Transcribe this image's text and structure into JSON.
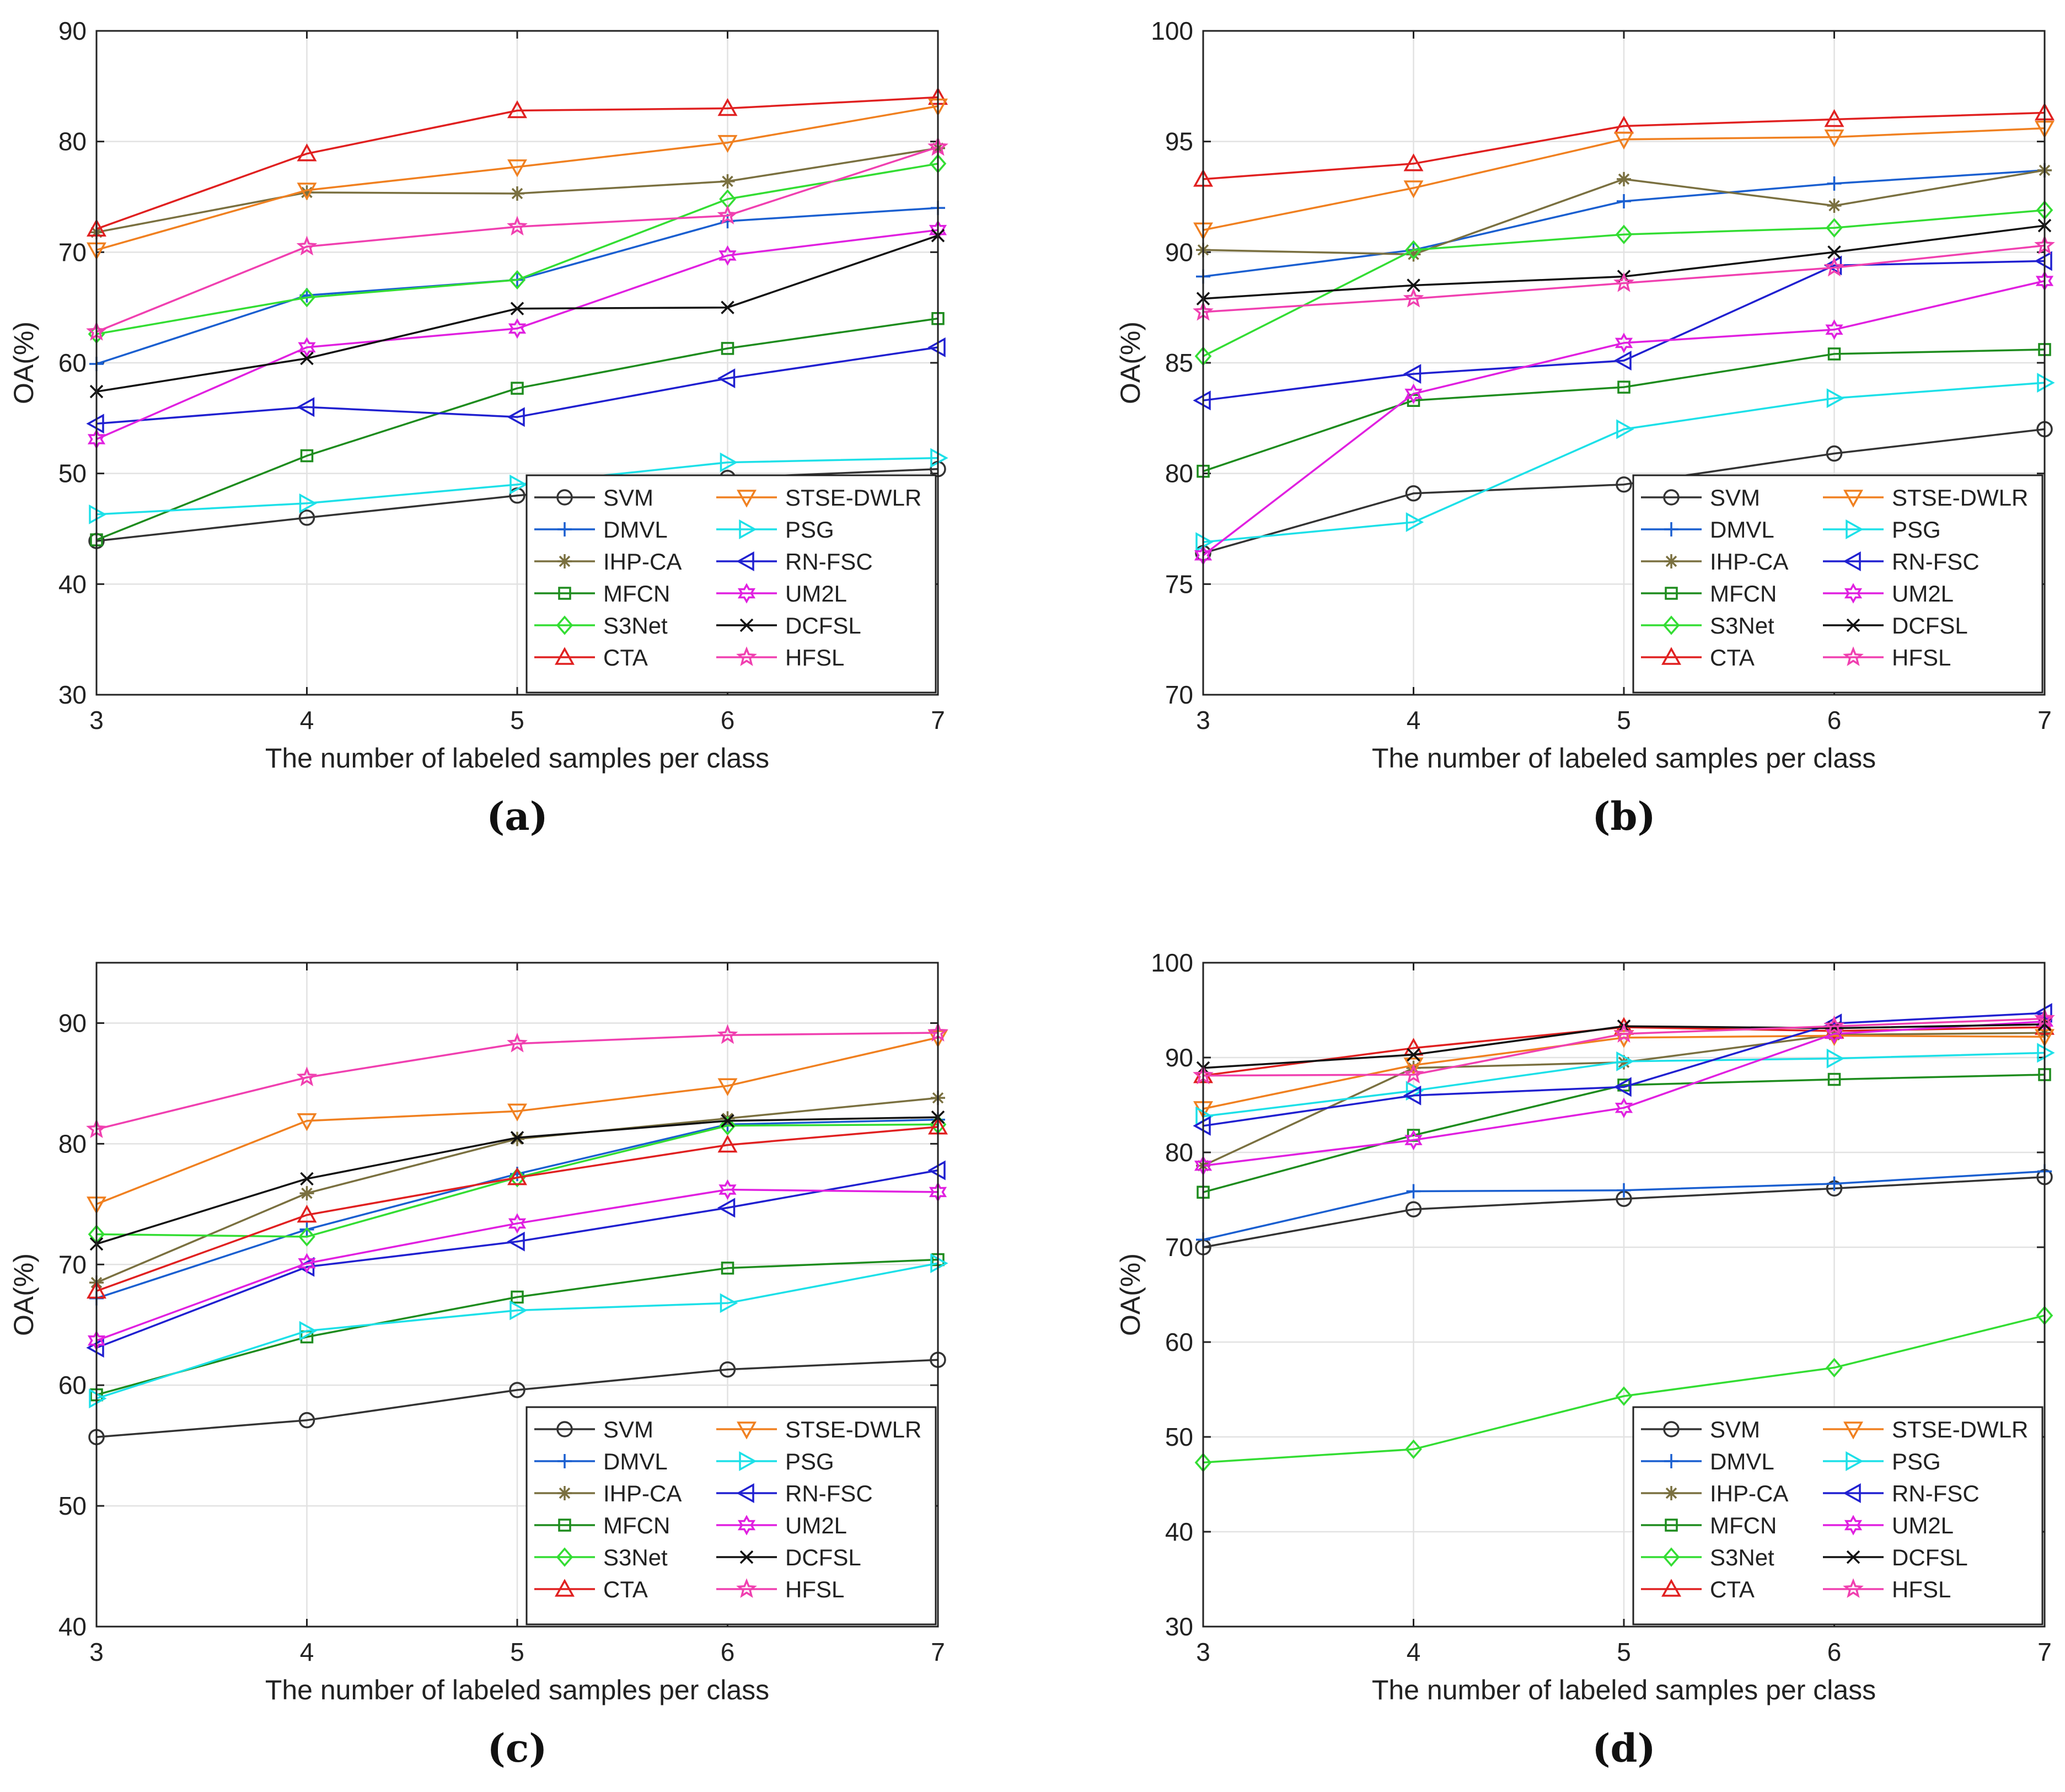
{
  "chart_data": [
    {
      "type": "line",
      "caption": "(a)",
      "xlabel": "The number of labeled samples per class",
      "ylabel": "OA(%)",
      "x": [
        3,
        4,
        5,
        6,
        7
      ],
      "xlim": [
        3,
        7
      ],
      "ylim": [
        30,
        90
      ],
      "xticks": [
        "3",
        "4",
        "5",
        "6",
        "7"
      ],
      "yticks": [
        "30",
        "40",
        "50",
        "60",
        "70",
        "80",
        "90"
      ],
      "grid": true,
      "legend": "bottom-right",
      "series": [
        {
          "name": "SVM",
          "values": [
            43.9,
            46.0,
            48.0,
            49.6,
            50.4
          ],
          "color": "#333333",
          "marker": "circle"
        },
        {
          "name": "DMVL",
          "values": [
            59.9,
            66.1,
            67.5,
            72.8,
            74.0
          ],
          "color": "#1a5fd0",
          "marker": "plus"
        },
        {
          "name": "IHP-CA",
          "values": [
            71.8,
            75.4,
            75.3,
            76.4,
            79.4
          ],
          "color": "#7a7040",
          "marker": "asterisk"
        },
        {
          "name": "MFCN",
          "values": [
            44.0,
            51.6,
            57.7,
            61.3,
            64.0
          ],
          "color": "#1e8c1e",
          "marker": "square"
        },
        {
          "name": "S3Net",
          "values": [
            62.6,
            65.9,
            67.5,
            74.8,
            78.0
          ],
          "color": "#33dd33",
          "marker": "diamond"
        },
        {
          "name": "CTA",
          "values": [
            72.1,
            78.9,
            82.8,
            83.0,
            84.0
          ],
          "color": "#e02020",
          "marker": "triangle-up"
        },
        {
          "name": "STSE-DWLR",
          "values": [
            70.2,
            75.6,
            77.7,
            79.9,
            83.2
          ],
          "color": "#f08020",
          "marker": "triangle-down"
        },
        {
          "name": "PSG",
          "values": [
            46.3,
            47.3,
            49.0,
            51.0,
            51.4
          ],
          "color": "#1de0e8",
          "marker": "triangle-right"
        },
        {
          "name": "RN-FSC",
          "values": [
            54.5,
            56.0,
            55.1,
            58.6,
            61.4
          ],
          "color": "#2020d0",
          "marker": "triangle-left"
        },
        {
          "name": "UM2L",
          "values": [
            53.1,
            61.4,
            63.1,
            69.7,
            72.0
          ],
          "color": "#e020e0",
          "marker": "hexagram"
        },
        {
          "name": "DCFSL",
          "values": [
            57.4,
            60.4,
            64.9,
            65.0,
            71.5
          ],
          "color": "#111111",
          "marker": "x"
        },
        {
          "name": "HFSL",
          "values": [
            62.8,
            70.5,
            72.3,
            73.3,
            79.5
          ],
          "color": "#f040b0",
          "marker": "pentagram"
        }
      ]
    },
    {
      "type": "line",
      "caption": "(b)",
      "xlabel": "The number of labeled samples per class",
      "ylabel": "OA(%)",
      "x": [
        3,
        4,
        5,
        6,
        7
      ],
      "xlim": [
        3,
        7
      ],
      "ylim": [
        70,
        100
      ],
      "xticks": [
        "3",
        "4",
        "5",
        "6",
        "7"
      ],
      "yticks": [
        "70",
        "75",
        "80",
        "85",
        "90",
        "95",
        "100"
      ],
      "grid": true,
      "legend": "bottom-right",
      "series": [
        {
          "name": "SVM",
          "values": [
            76.4,
            79.1,
            79.5,
            80.9,
            82.0
          ],
          "color": "#333333",
          "marker": "circle"
        },
        {
          "name": "DMVL",
          "values": [
            88.9,
            90.1,
            92.3,
            93.1,
            93.7
          ],
          "color": "#1a5fd0",
          "marker": "plus"
        },
        {
          "name": "IHP-CA",
          "values": [
            90.1,
            89.9,
            93.3,
            92.1,
            93.7
          ],
          "color": "#7a7040",
          "marker": "asterisk"
        },
        {
          "name": "MFCN",
          "values": [
            80.1,
            83.3,
            83.9,
            85.4,
            85.6
          ],
          "color": "#1e8c1e",
          "marker": "square"
        },
        {
          "name": "S3Net",
          "values": [
            85.3,
            90.1,
            90.8,
            91.1,
            91.9
          ],
          "color": "#33dd33",
          "marker": "diamond"
        },
        {
          "name": "CTA",
          "values": [
            93.3,
            94.0,
            95.7,
            96.0,
            96.3
          ],
          "color": "#e02020",
          "marker": "triangle-up"
        },
        {
          "name": "STSE-DWLR",
          "values": [
            91.0,
            92.9,
            95.1,
            95.2,
            95.6
          ],
          "color": "#f08020",
          "marker": "triangle-down"
        },
        {
          "name": "PSG",
          "values": [
            76.9,
            77.8,
            82.0,
            83.4,
            84.1
          ],
          "color": "#1de0e8",
          "marker": "triangle-right"
        },
        {
          "name": "RN-FSC",
          "values": [
            83.3,
            84.5,
            85.1,
            89.4,
            89.6
          ],
          "color": "#2020d0",
          "marker": "triangle-left"
        },
        {
          "name": "UM2L",
          "values": [
            76.3,
            83.6,
            85.9,
            86.5,
            88.7
          ],
          "color": "#e020e0",
          "marker": "hexagram"
        },
        {
          "name": "DCFSL",
          "values": [
            87.9,
            88.5,
            88.9,
            90.0,
            91.2
          ],
          "color": "#111111",
          "marker": "x"
        },
        {
          "name": "HFSL",
          "values": [
            87.3,
            87.9,
            88.6,
            89.3,
            90.3
          ],
          "color": "#f040b0",
          "marker": "pentagram"
        }
      ]
    },
    {
      "type": "line",
      "caption": "(c)",
      "xlabel": "The number of labeled samples per class",
      "ylabel": "OA(%)",
      "x": [
        3,
        4,
        5,
        6,
        7
      ],
      "xlim": [
        3,
        7
      ],
      "ylim": [
        40,
        95
      ],
      "xticks": [
        "3",
        "4",
        "5",
        "6",
        "7"
      ],
      "yticks": [
        "40",
        "50",
        "60",
        "70",
        "80",
        "90"
      ],
      "grid": true,
      "legend": "bottom-right",
      "series": [
        {
          "name": "SVM",
          "values": [
            55.7,
            57.1,
            59.6,
            61.3,
            62.1
          ],
          "color": "#333333",
          "marker": "circle"
        },
        {
          "name": "DMVL",
          "values": [
            67.2,
            72.9,
            77.5,
            81.6,
            82.0
          ],
          "color": "#1a5fd0",
          "marker": "plus"
        },
        {
          "name": "IHP-CA",
          "values": [
            68.5,
            75.9,
            80.4,
            82.1,
            83.8
          ],
          "color": "#7a7040",
          "marker": "asterisk"
        },
        {
          "name": "MFCN",
          "values": [
            59.2,
            64.0,
            67.3,
            69.7,
            70.4
          ],
          "color": "#1e8c1e",
          "marker": "square"
        },
        {
          "name": "S3Net",
          "values": [
            72.5,
            72.3,
            77.2,
            81.5,
            81.6
          ],
          "color": "#33dd33",
          "marker": "diamond"
        },
        {
          "name": "CTA",
          "values": [
            67.8,
            74.1,
            77.2,
            79.9,
            81.4
          ],
          "color": "#e02020",
          "marker": "triangle-up"
        },
        {
          "name": "STSE-DWLR",
          "values": [
            75.0,
            81.9,
            82.7,
            84.8,
            88.8
          ],
          "color": "#f08020",
          "marker": "triangle-down"
        },
        {
          "name": "PSG",
          "values": [
            58.9,
            64.5,
            66.2,
            66.8,
            70.1
          ],
          "color": "#1de0e8",
          "marker": "triangle-right"
        },
        {
          "name": "RN-FSC",
          "values": [
            63.1,
            69.8,
            71.9,
            74.7,
            77.8
          ],
          "color": "#2020d0",
          "marker": "triangle-left"
        },
        {
          "name": "UM2L",
          "values": [
            63.7,
            70.1,
            73.4,
            76.2,
            76.0
          ],
          "color": "#e020e0",
          "marker": "hexagram"
        },
        {
          "name": "DCFSL",
          "values": [
            71.7,
            77.1,
            80.5,
            81.9,
            82.2
          ],
          "color": "#111111",
          "marker": "x"
        },
        {
          "name": "HFSL",
          "values": [
            81.2,
            85.5,
            88.3,
            89.0,
            89.2
          ],
          "color": "#f040b0",
          "marker": "pentagram"
        }
      ]
    },
    {
      "type": "line",
      "caption": "(d)",
      "xlabel": "The number of labeled samples per class",
      "ylabel": "OA(%)",
      "x": [
        3,
        4,
        5,
        6,
        7
      ],
      "xlim": [
        3,
        7
      ],
      "ylim": [
        30,
        100
      ],
      "xticks": [
        "3",
        "4",
        "5",
        "6",
        "7"
      ],
      "yticks": [
        "30",
        "40",
        "50",
        "60",
        "70",
        "80",
        "90",
        "100"
      ],
      "grid": true,
      "legend": "bottom-right",
      "series": [
        {
          "name": "SVM",
          "values": [
            70.0,
            74.0,
            75.1,
            76.2,
            77.4
          ],
          "color": "#333333",
          "marker": "circle"
        },
        {
          "name": "DMVL",
          "values": [
            70.8,
            75.9,
            76.0,
            76.7,
            78.0
          ],
          "color": "#1a5fd0",
          "marker": "plus"
        },
        {
          "name": "IHP-CA",
          "values": [
            78.6,
            88.9,
            89.5,
            92.4,
            92.6
          ],
          "color": "#7a7040",
          "marker": "asterisk"
        },
        {
          "name": "MFCN",
          "values": [
            75.8,
            81.8,
            87.1,
            87.7,
            88.2
          ],
          "color": "#1e8c1e",
          "marker": "square"
        },
        {
          "name": "S3Net",
          "values": [
            47.3,
            48.7,
            54.3,
            57.3,
            62.8
          ],
          "color": "#33dd33",
          "marker": "diamond"
        },
        {
          "name": "CTA",
          "values": [
            88.1,
            91.0,
            93.2,
            92.8,
            93.2
          ],
          "color": "#e02020",
          "marker": "triangle-up"
        },
        {
          "name": "STSE-DWLR",
          "values": [
            84.6,
            89.2,
            92.1,
            92.3,
            92.2
          ],
          "color": "#f08020",
          "marker": "triangle-down"
        },
        {
          "name": "PSG",
          "values": [
            83.8,
            86.5,
            89.6,
            89.9,
            90.5
          ],
          "color": "#1de0e8",
          "marker": "triangle-right"
        },
        {
          "name": "RN-FSC",
          "values": [
            82.8,
            86.0,
            86.9,
            93.6,
            94.7
          ],
          "color": "#2020d0",
          "marker": "triangle-left"
        },
        {
          "name": "UM2L",
          "values": [
            78.6,
            81.3,
            84.7,
            92.5,
            93.8
          ],
          "color": "#e020e0",
          "marker": "hexagram"
        },
        {
          "name": "DCFSL",
          "values": [
            88.9,
            90.3,
            93.3,
            93.1,
            93.5
          ],
          "color": "#111111",
          "marker": "x"
        },
        {
          "name": "HFSL",
          "values": [
            88.1,
            88.2,
            92.5,
            93.3,
            94.1
          ],
          "color": "#f040b0",
          "marker": "pentagram"
        }
      ]
    }
  ]
}
